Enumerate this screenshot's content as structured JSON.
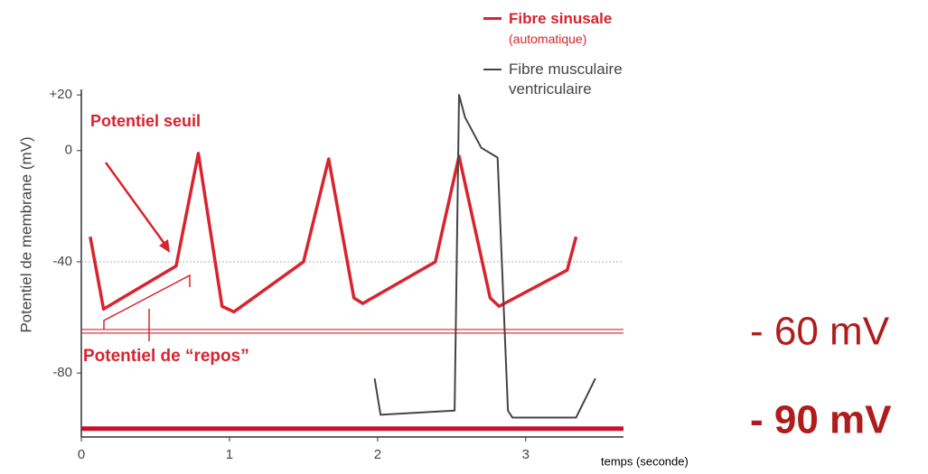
{
  "chart_data": {
    "type": "line",
    "ylabel": "Potentiel de membrane (mV)",
    "xlabel": "temps (seconde)",
    "xlim": [
      0,
      3.66
    ],
    "ylim": [
      -103,
      22
    ],
    "xticks": [
      0,
      1,
      2,
      3
    ],
    "yticks": [
      {
        "value": 20,
        "label": "+20"
      },
      0,
      -40,
      -80
    ],
    "series": [
      {
        "name": "Fibre sinusale",
        "note": "(automatique)",
        "color": "#d9232e",
        "x": [
          0.06,
          0.15,
          0.64,
          0.79,
          0.95,
          1.03,
          1.5,
          1.67,
          1.84,
          1.9,
          2.39,
          2.55,
          2.76,
          2.82,
          3.28,
          3.34
        ],
        "values": [
          -31,
          -57,
          -41.5,
          -1,
          -56,
          -58,
          -40,
          -3,
          -53,
          -55,
          -40,
          -2,
          -53,
          -56,
          -43,
          -31
        ]
      },
      {
        "name": "Fibre musculaire ventriculaire",
        "color": "#444444",
        "x": [
          1.98,
          2.02,
          2.52,
          2.55,
          2.59,
          2.7,
          2.81,
          2.88,
          2.91,
          3.34,
          3.47
        ],
        "values": [
          -82,
          -95,
          -93.5,
          20,
          12,
          1,
          -2.5,
          -93.5,
          -96,
          -96,
          -82
        ]
      }
    ],
    "reference_lines": [
      {
        "value": -40,
        "color": "#b0b0b0"
      },
      {
        "value": -65,
        "color": "#d9232e"
      },
      {
        "value": -100,
        "color": "#c8102e"
      }
    ],
    "annotations": [
      "Potentiel seuil",
      "Potentiel de “repos”",
      "- 60 mV",
      "- 90 mV"
    ]
  }
}
